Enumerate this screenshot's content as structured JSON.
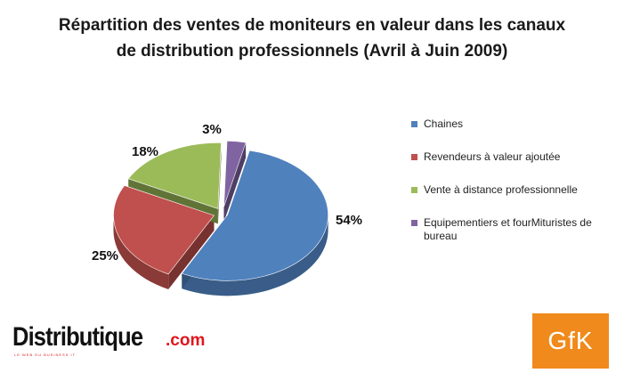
{
  "title": {
    "line1": "Répartition des ventes de moniteurs  en valeur dans les canaux",
    "line2": "de distribution professionnels (Avril à Juin 2009)"
  },
  "chart_data": {
    "type": "pie",
    "title": "Répartition des ventes de moniteurs  en valeur dans les canaux de distribution professionnels (Avril à Juin 2009)",
    "legend_position": "right",
    "slices": [
      {
        "name": "Chaines",
        "value": 54,
        "label": "54%",
        "color": "#4f81bd"
      },
      {
        "name": "Revendeurs à valeur ajoutée",
        "value": 25,
        "label": "25%",
        "color": "#c0504d"
      },
      {
        "name": "Vente à distance professionnelle",
        "value": 18,
        "label": "18%",
        "color": "#9bbb59"
      },
      {
        "name": "Equipementiers et fourMituristes de bureau",
        "value": 3,
        "label": "3%",
        "color": "#8064a2"
      }
    ]
  },
  "logos": {
    "distributique_brand": "Distributique",
    "distributique_domain": ".com",
    "distributique_tagline": "LE WEB DU BUSINESS IT",
    "gfk": "GfK"
  }
}
